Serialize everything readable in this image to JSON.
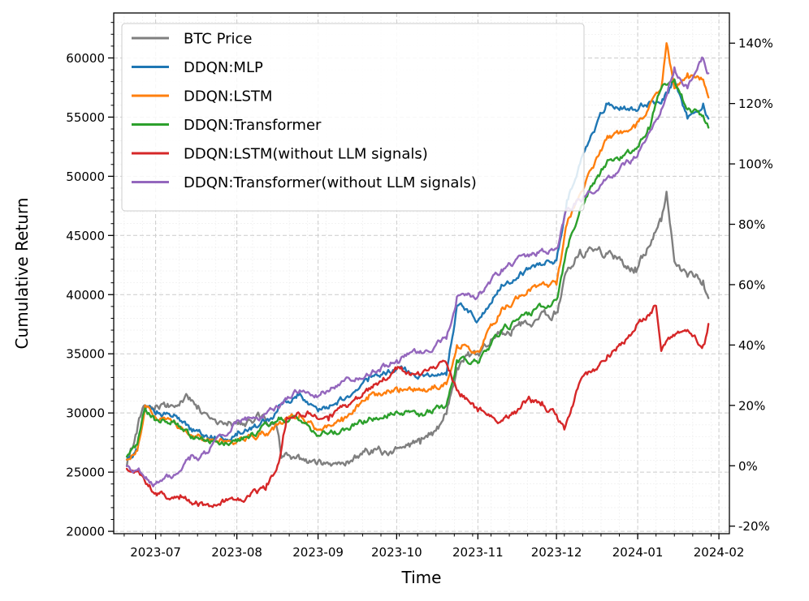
{
  "chart_data": {
    "type": "line",
    "xlabel": "Time",
    "ylabel": "Cumulative Return",
    "x_range": [
      "2023-06-15",
      "2024-02-05"
    ],
    "x_ticks": [
      "2023-07",
      "2023-08",
      "2023-09",
      "2023-10",
      "2023-11",
      "2023-12",
      "2024-01",
      "2024-02"
    ],
    "left_axis": {
      "ylim": [
        19800,
        63800
      ],
      "ticks": [
        20000,
        25000,
        30000,
        35000,
        40000,
        45000,
        50000,
        55000,
        60000
      ]
    },
    "right_axis": {
      "ylim": [
        -22.5,
        150
      ],
      "ticks": [
        "-20%",
        "0%",
        "20%",
        "40%",
        "60%",
        "80%",
        "100%",
        "120%",
        "140%"
      ],
      "tick_values": [
        -20,
        0,
        20,
        40,
        60,
        80,
        100,
        120,
        140
      ]
    },
    "grid": true,
    "legend_position": "upper-left",
    "series": [
      {
        "name": "BTC Price",
        "axis": "left",
        "color": "#7f7f7f",
        "x": [
          "2023-06-20",
          "2023-06-22",
          "2023-06-26",
          "2023-07-01",
          "2023-07-06",
          "2023-07-14",
          "2023-07-20",
          "2023-07-26",
          "2023-08-01",
          "2023-08-10",
          "2023-08-16",
          "2023-08-18",
          "2023-08-25",
          "2023-09-01",
          "2023-09-10",
          "2023-09-20",
          "2023-10-01",
          "2023-10-10",
          "2023-10-16",
          "2023-10-20",
          "2023-10-24",
          "2023-10-26",
          "2023-11-01",
          "2023-11-10",
          "2023-11-20",
          "2023-12-01",
          "2023-12-05",
          "2023-12-10",
          "2023-12-20",
          "2023-12-31",
          "2024-01-05",
          "2024-01-10",
          "2024-01-12",
          "2024-01-15",
          "2024-01-20",
          "2024-01-26",
          "2024-01-28"
        ],
        "values": [
          25500,
          27000,
          30400,
          30600,
          30500,
          31300,
          30000,
          29300,
          29200,
          29500,
          29000,
          26200,
          26100,
          25900,
          25800,
          26700,
          27000,
          27400,
          28500,
          29900,
          33800,
          34400,
          35000,
          37000,
          37500,
          38500,
          42000,
          43800,
          43500,
          42300,
          44000,
          46200,
          48700,
          42800,
          41500,
          41200,
          39700
        ]
      },
      {
        "name": "DDQN:MLP",
        "axis": "right",
        "color": "#1f77b4",
        "x": [
          "2023-06-20",
          "2023-06-24",
          "2023-06-27",
          "2023-07-01",
          "2023-07-08",
          "2023-07-14",
          "2023-07-24",
          "2023-08-01",
          "2023-08-15",
          "2023-08-17",
          "2023-08-25",
          "2023-09-01",
          "2023-09-10",
          "2023-09-20",
          "2023-10-01",
          "2023-10-10",
          "2023-10-20",
          "2023-10-24",
          "2023-10-26",
          "2023-11-01",
          "2023-11-10",
          "2023-11-20",
          "2023-12-01",
          "2023-12-05",
          "2023-12-10",
          "2023-12-20",
          "2023-12-31",
          "2024-01-05",
          "2024-01-10",
          "2024-01-15",
          "2024-01-20",
          "2024-01-26",
          "2024-01-28"
        ],
        "values": [
          2,
          5,
          20,
          17,
          17,
          12,
          9,
          10,
          16,
          20,
          24,
          18,
          22,
          28,
          32,
          30,
          30,
          53,
          53,
          48,
          60,
          65,
          68,
          88,
          100,
          120,
          118,
          120,
          120,
          128,
          115,
          120,
          115
        ]
      },
      {
        "name": "DDQN:LSTM",
        "axis": "right",
        "color": "#ff7f0e",
        "x": [
          "2023-06-20",
          "2023-06-24",
          "2023-06-27",
          "2023-07-01",
          "2023-07-08",
          "2023-07-14",
          "2023-07-24",
          "2023-08-01",
          "2023-08-15",
          "2023-08-17",
          "2023-08-25",
          "2023-09-01",
          "2023-09-10",
          "2023-09-20",
          "2023-10-01",
          "2023-10-10",
          "2023-10-20",
          "2023-10-24",
          "2023-10-26",
          "2023-11-01",
          "2023-11-10",
          "2023-11-20",
          "2023-12-01",
          "2023-12-05",
          "2023-12-10",
          "2023-12-20",
          "2023-12-31",
          "2024-01-05",
          "2024-01-10",
          "2024-01-12",
          "2024-01-15",
          "2024-01-20",
          "2024-01-26",
          "2024-01-28"
        ],
        "values": [
          2,
          5,
          20,
          16,
          15,
          10,
          8,
          8,
          12,
          14,
          17,
          12,
          16,
          22,
          26,
          25,
          27,
          40,
          40,
          38,
          52,
          58,
          60,
          80,
          90,
          108,
          112,
          118,
          125,
          140,
          125,
          130,
          128,
          122
        ]
      },
      {
        "name": "DDQN:Transformer",
        "axis": "right",
        "color": "#2ca02c",
        "x": [
          "2023-06-20",
          "2023-06-24",
          "2023-06-27",
          "2023-07-01",
          "2023-07-08",
          "2023-07-14",
          "2023-07-24",
          "2023-08-01",
          "2023-08-15",
          "2023-08-17",
          "2023-08-25",
          "2023-09-01",
          "2023-09-10",
          "2023-09-20",
          "2023-10-01",
          "2023-10-10",
          "2023-10-20",
          "2023-10-24",
          "2023-10-26",
          "2023-11-01",
          "2023-11-10",
          "2023-11-20",
          "2023-12-01",
          "2023-12-05",
          "2023-12-10",
          "2023-12-20",
          "2023-12-31",
          "2024-01-05",
          "2024-01-10",
          "2024-01-15",
          "2024-01-20",
          "2024-01-26",
          "2024-01-28"
        ],
        "values": [
          3,
          7,
          19,
          15,
          15,
          10,
          8,
          8,
          14,
          16,
          15,
          10,
          12,
          15,
          18,
          17,
          20,
          35,
          36,
          34,
          45,
          50,
          55,
          72,
          85,
          100,
          105,
          112,
          125,
          128,
          118,
          116,
          112
        ]
      },
      {
        "name": "DDQN:LSTM(without LLM signals)",
        "axis": "right",
        "color": "#d62728",
        "x": [
          "2023-06-20",
          "2023-06-25",
          "2023-07-01",
          "2023-07-10",
          "2023-07-20",
          "2023-07-27",
          "2023-08-05",
          "2023-08-12",
          "2023-08-17",
          "2023-08-20",
          "2023-08-28",
          "2023-09-05",
          "2023-09-15",
          "2023-09-25",
          "2023-10-01",
          "2023-10-10",
          "2023-10-20",
          "2023-10-24",
          "2023-10-28",
          "2023-11-01",
          "2023-11-10",
          "2023-11-15",
          "2023-11-20",
          "2023-11-25",
          "2023-12-01",
          "2023-12-04",
          "2023-12-10",
          "2023-12-20",
          "2023-12-31",
          "2024-01-05",
          "2024-01-08",
          "2024-01-10",
          "2024-01-15",
          "2024-01-20",
          "2024-01-26",
          "2024-01-28"
        ],
        "values": [
          -1,
          -3,
          -9,
          -11,
          -13,
          -12,
          -10,
          -8,
          1,
          16,
          18,
          15,
          22,
          28,
          32,
          30,
          34,
          25,
          22,
          18,
          15,
          18,
          22,
          20,
          17,
          12,
          28,
          35,
          45,
          50,
          53,
          38,
          43,
          45,
          40,
          47
        ]
      },
      {
        "name": "DDQN:Transformer(without LLM signals)",
        "axis": "right",
        "color": "#9467bd",
        "x": [
          "2023-06-20",
          "2023-06-25",
          "2023-07-01",
          "2023-07-08",
          "2023-07-14",
          "2023-07-20",
          "2023-08-01",
          "2023-08-10",
          "2023-08-17",
          "2023-08-20",
          "2023-08-25",
          "2023-09-01",
          "2023-09-10",
          "2023-09-20",
          "2023-10-01",
          "2023-10-10",
          "2023-10-20",
          "2023-10-24",
          "2023-10-26",
          "2023-11-01",
          "2023-11-10",
          "2023-11-20",
          "2023-12-01",
          "2023-12-05",
          "2023-12-10",
          "2023-12-20",
          "2023-12-31",
          "2024-01-05",
          "2024-01-10",
          "2024-01-15",
          "2024-01-20",
          "2024-01-26",
          "2024-01-28"
        ],
        "values": [
          0,
          -2,
          -6,
          -3,
          2,
          4,
          15,
          16,
          19,
          22,
          25,
          23,
          28,
          30,
          35,
          38,
          42,
          56,
          57,
          56,
          65,
          70,
          72,
          85,
          88,
          95,
          102,
          110,
          118,
          132,
          125,
          135,
          130
        ]
      }
    ]
  }
}
